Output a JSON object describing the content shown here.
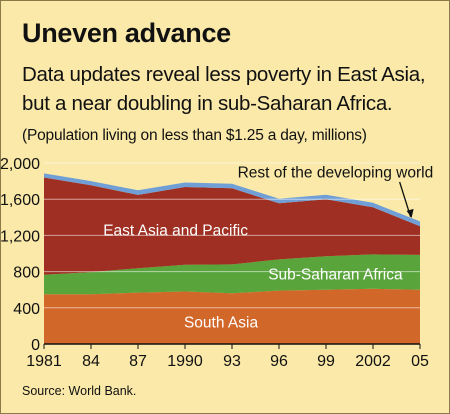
{
  "header": {
    "title": "Uneven advance",
    "subtitle_line1": "Data updates reveal less poverty in East Asia,",
    "subtitle_line2": "but a near doubling in sub-Saharan Africa.",
    "unit_note": "(Population living on less than $1.25 a day, millions)"
  },
  "footer": {
    "source": "Source: World Bank."
  },
  "chart_data": {
    "type": "area",
    "stacked": true,
    "x": [
      1981,
      1984,
      1987,
      1990,
      1993,
      1996,
      1999,
      2002,
      2005
    ],
    "x_tick_labels": [
      "1981",
      "84",
      "87",
      "1990",
      "93",
      "96",
      "99",
      "2002",
      "05"
    ],
    "y_ticks": [
      0,
      400,
      800,
      1200,
      1600,
      2000
    ],
    "y_tick_labels": [
      "0",
      "400",
      "800",
      "1,200",
      "1,600",
      "2,000"
    ],
    "ylim": [
      0,
      2000
    ],
    "grid": true,
    "series": [
      {
        "name": "South Asia",
        "color": "#d2672a",
        "label_color": "#ffffff",
        "values": [
          550,
          550,
          568,
          580,
          560,
          590,
          600,
          610,
          600
        ]
      },
      {
        "name": "Sub-Saharan Africa",
        "color": "#5aa43c",
        "label_color": "#ffffff",
        "values": [
          215,
          245,
          270,
          295,
          320,
          345,
          370,
          380,
          385
        ]
      },
      {
        "name": "East Asia and Pacific",
        "color": "#9e2f22",
        "label_color": "#ffffff",
        "values": [
          1075,
          960,
          810,
          860,
          840,
          620,
          630,
          520,
          315
        ]
      },
      {
        "name": "Rest of the developing world",
        "color": "#6f9fd6",
        "label_color": "#111111",
        "values": [
          45,
          45,
          50,
          50,
          50,
          50,
          50,
          50,
          55
        ]
      }
    ]
  },
  "colors": {
    "background": "#fae9a8",
    "gridline": "#ffffff",
    "axis": "#111111"
  }
}
